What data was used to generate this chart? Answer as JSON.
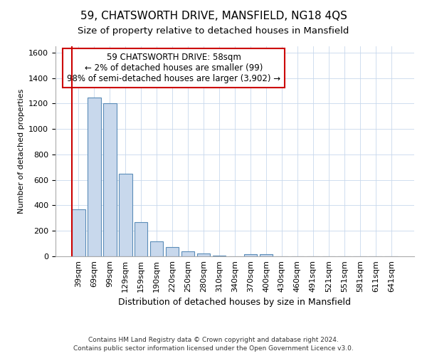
{
  "title": "59, CHATSWORTH DRIVE, MANSFIELD, NG18 4QS",
  "subtitle": "Size of property relative to detached houses in Mansfield",
  "xlabel": "Distribution of detached houses by size in Mansfield",
  "ylabel": "Number of detached properties",
  "categories": [
    "39sqm",
    "69sqm",
    "99sqm",
    "129sqm",
    "159sqm",
    "190sqm",
    "220sqm",
    "250sqm",
    "280sqm",
    "310sqm",
    "340sqm",
    "370sqm",
    "400sqm",
    "430sqm",
    "460sqm",
    "491sqm",
    "521sqm",
    "551sqm",
    "581sqm",
    "611sqm",
    "641sqm"
  ],
  "values": [
    370,
    1250,
    1205,
    650,
    270,
    120,
    75,
    38,
    20,
    5,
    2,
    15,
    18,
    2,
    1,
    1,
    1,
    1,
    1,
    1,
    1
  ],
  "bar_color": "#c8d8ec",
  "bar_edge_color": "#5b8db8",
  "bar_linewidth": 0.8,
  "highlight_color": "#cc0000",
  "annotation_lines": [
    "59 CHATSWORTH DRIVE: 58sqm",
    "← 2% of detached houses are smaller (99)",
    "98% of semi-detached houses are larger (3,902) →"
  ],
  "annotation_box_color": "#ffffff",
  "annotation_box_edge": "#cc0000",
  "grid_color": "#c8d8ec",
  "background_color": "#ffffff",
  "ylim": [
    0,
    1650
  ],
  "yticks": [
    0,
    200,
    400,
    600,
    800,
    1000,
    1200,
    1400,
    1600
  ],
  "footnote1": "Contains HM Land Registry data © Crown copyright and database right 2024.",
  "footnote2": "Contains public sector information licensed under the Open Government Licence v3.0.",
  "title_fontsize": 11,
  "subtitle_fontsize": 9.5,
  "xlabel_fontsize": 9,
  "ylabel_fontsize": 8,
  "tick_fontsize": 8,
  "annotation_fontsize": 8.5,
  "footnote_fontsize": 6.5
}
